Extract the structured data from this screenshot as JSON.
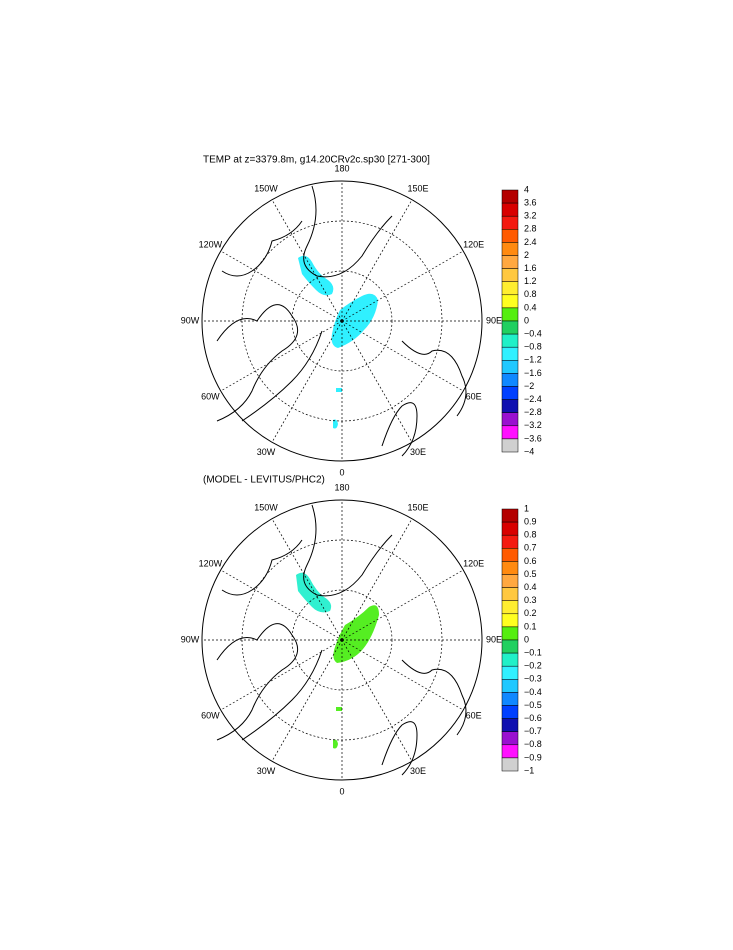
{
  "panels": [
    {
      "title": "TEMP at z=3379.8m, g14.20CRv2c.sp30 [271-300]",
      "lon_labels": [
        "180",
        "150E",
        "120E",
        "90E",
        "60E",
        "30E",
        "0",
        "30W",
        "60W",
        "90W",
        "120W",
        "150W"
      ],
      "colorbar_labels": [
        "4",
        "3.6",
        "3.2",
        "2.8",
        "2.4",
        "2",
        "1.6",
        "1.2",
        "0.8",
        "0.4",
        "0",
        "−0.4",
        "−0.8",
        "−1.2",
        "−1.6",
        "−2",
        "−2.4",
        "−2.8",
        "−3.2",
        "−3.6",
        "−4"
      ]
    },
    {
      "title": "(MODEL - LEVITUS/PHC2)",
      "lon_labels": [
        "180",
        "150E",
        "120E",
        "90E",
        "60E",
        "30E",
        "0",
        "30W",
        "60W",
        "90W",
        "120W",
        "150W"
      ],
      "colorbar_labels": [
        "1",
        "0.9",
        "0.8",
        "0.7",
        "0.6",
        "0.5",
        "0.4",
        "0.3",
        "0.2",
        "0.1",
        "0",
        "−0.1",
        "−0.2",
        "−0.3",
        "−0.4",
        "−0.5",
        "−0.6",
        "−0.7",
        "−0.8",
        "−0.9",
        "−1"
      ]
    }
  ],
  "colorbar_colors": [
    "#b40000",
    "#d80000",
    "#f41a10",
    "#ff5a00",
    "#ff8a10",
    "#ffa840",
    "#ffc840",
    "#ffee30",
    "#ffff20",
    "#55ee10",
    "#20d060",
    "#20f0c8",
    "#30f0ff",
    "#20c8ff",
    "#1088ff",
    "#0040ff",
    "#1010b0",
    "#9a10d0",
    "#ff10ff",
    "#d0d0d0",
    "#707070"
  ]
}
